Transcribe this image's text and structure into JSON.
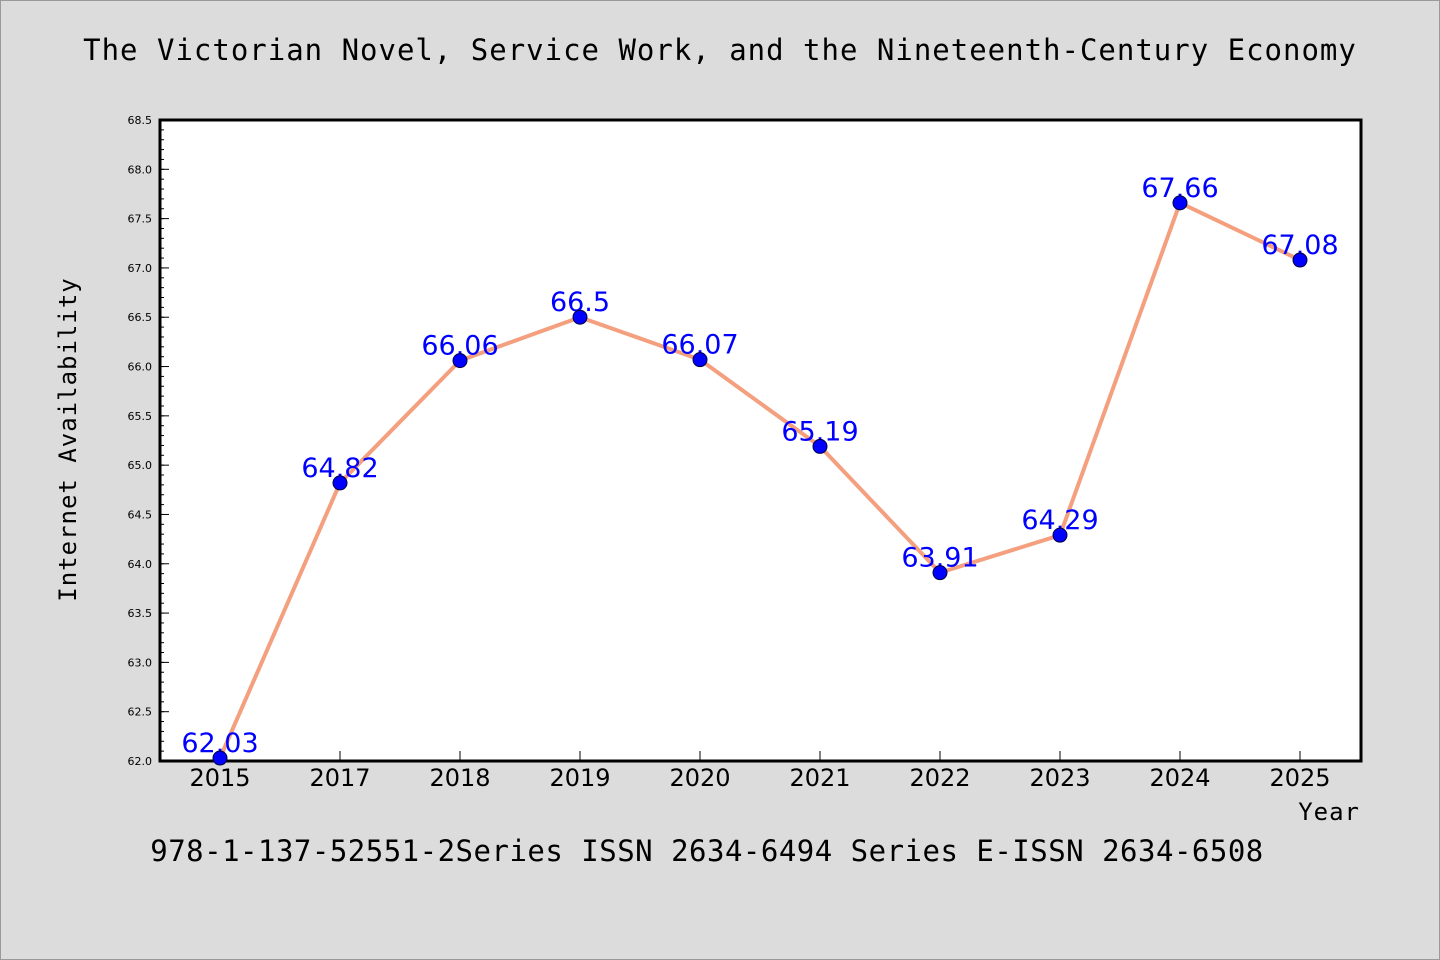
{
  "title": "The Victorian Novel, Service Work, and the Nineteenth-Century Economy",
  "footer": "978-1-137-52551-2Series ISSN 2634-6494 Series E-ISSN 2634-6508",
  "colors": {
    "background": "#dcdcdc",
    "plot_background": "#ffffff",
    "line": "#f4a07f",
    "marker": "#0000ff",
    "label": "#0000ff"
  },
  "chart_data": {
    "type": "line",
    "title": "The Victorian Novel, Service Work, and the Nineteenth-Century Economy",
    "xlabel": "Year",
    "ylabel": "Internet Availability",
    "categories": [
      "2015",
      "2017",
      "2018",
      "2019",
      "2020",
      "2021",
      "2022",
      "2023",
      "2024",
      "2025"
    ],
    "values": [
      62.03,
      64.82,
      66.06,
      66.5,
      66.07,
      65.19,
      63.91,
      64.29,
      67.66,
      67.08
    ],
    "value_labels": [
      "62.03",
      "64.82",
      "66.06",
      "66.5",
      "66.07",
      "65.19",
      "63.91",
      "64.29",
      "67.66",
      "67.08"
    ],
    "ylim": [
      62.0,
      68.5
    ],
    "yticks": [
      "62.0",
      "62.5",
      "63.0",
      "63.5",
      "64.0",
      "64.5",
      "65.0",
      "65.5",
      "66.0",
      "66.5",
      "67.0",
      "67.5",
      "68.0",
      "68.5"
    ],
    "grid": false,
    "legend": "none"
  }
}
